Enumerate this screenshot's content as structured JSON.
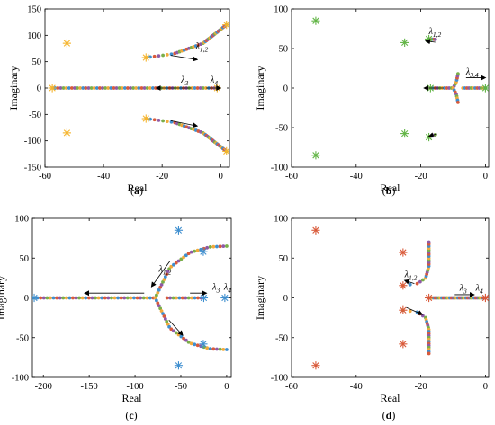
{
  "colors": {
    "arrow": "#000000",
    "axis": "#000000"
  },
  "chart_data": [
    {
      "id": "a",
      "type": "scatter",
      "label": "(a)",
      "xlabel": "Real",
      "ylabel": "Imaginary",
      "xlim": [
        -60,
        3
      ],
      "ylim": [
        -150,
        150
      ],
      "xticks": [
        -60,
        -40,
        -20,
        0
      ],
      "yticks": [
        -150,
        -100,
        -50,
        0,
        50,
        100,
        150
      ],
      "series": [
        {
          "marker": "star",
          "color": "#f5b52e",
          "points": [
            [
              -52.5,
              85
            ],
            [
              -52.5,
              -85
            ],
            [
              -25.5,
              58
            ],
            [
              -25.5,
              -58
            ],
            [
              -57.5,
              0
            ],
            [
              -1.2,
              0
            ],
            [
              2,
              120
            ],
            [
              2,
              -120
            ]
          ]
        },
        {
          "marker": "dot",
          "colors": [
            "#f2a93b",
            "#3f8fcf",
            "#d95a3a",
            "#8e5aa6",
            "#7aae4a"
          ],
          "paths": [
            {
              "x": [
                -57.5,
                -1.2
              ],
              "y": [
                0,
                0
              ],
              "n": 60
            },
            {
              "x": [
                -25.5,
                -16,
                -6,
                2
              ],
              "y": [
                58,
                65,
                85,
                120
              ],
              "n": 40
            },
            {
              "x": [
                -25.5,
                -16,
                -6,
                2
              ],
              "y": [
                -58,
                -65,
                -85,
                -120
              ],
              "n": 40
            }
          ]
        }
      ],
      "arrows": [
        [
          -17,
          62,
          -8,
          54
        ],
        [
          -17,
          -62,
          -8,
          -72
        ],
        [
          -10,
          0,
          -22,
          0
        ],
        [
          -5,
          0,
          0,
          0
        ]
      ],
      "annotations": [
        {
          "text": "λ1,2",
          "x": -8.5,
          "y": 74
        },
        {
          "text": "λ3",
          "x": -13.5,
          "y": 10
        },
        {
          "text": "λ4",
          "x": -3.5,
          "y": 10
        }
      ]
    },
    {
      "id": "b",
      "type": "scatter",
      "label": "(b)",
      "xlabel": "Real",
      "ylabel": "Imaginary",
      "xlim": [
        -60,
        1
      ],
      "ylim": [
        -100,
        100
      ],
      "xticks": [
        -60,
        -40,
        -20,
        0
      ],
      "yticks": [
        -100,
        -50,
        0,
        50,
        100
      ],
      "series": [
        {
          "marker": "star",
          "color": "#62b546",
          "points": [
            [
              -52.5,
              85
            ],
            [
              -52.5,
              -85
            ],
            [
              -25,
              57.5
            ],
            [
              -25,
              -57.5
            ],
            [
              -17.5,
              62
            ],
            [
              -17.5,
              -62
            ],
            [
              -17,
              0
            ],
            [
              0,
              0
            ]
          ]
        },
        {
          "marker": "dot",
          "colors": [
            "#f2a93b",
            "#3f8fcf",
            "#d95a3a",
            "#8e5aa6",
            "#7aae4a"
          ],
          "paths": [
            {
              "x": [
                -17,
                -10.5
              ],
              "y": [
                0,
                0
              ],
              "n": 10
            },
            {
              "x": [
                -7,
                0
              ],
              "y": [
                0,
                0
              ],
              "n": 12
            },
            {
              "x": [
                -10,
                -9,
                -8.5
              ],
              "y": [
                0,
                8,
                18
              ],
              "n": 8
            },
            {
              "x": [
                -10,
                -9,
                -8.5
              ],
              "y": [
                0,
                -8,
                -18
              ],
              "n": 8
            },
            {
              "x": [
                -17.5,
                -15.5
              ],
              "y": [
                62,
                61.5
              ],
              "n": 6
            },
            {
              "x": [
                -17.5,
                -15.5
              ],
              "y": [
                -62,
                -59
              ],
              "n": 6
            }
          ]
        }
      ],
      "arrows": [
        [
          -15.5,
          58,
          -18.5,
          59.5
        ],
        [
          -15,
          -58,
          -17.5,
          -61
        ],
        [
          -13,
          0,
          -19,
          0
        ],
        [
          -6,
          13,
          0,
          13
        ]
      ],
      "annotations": [
        {
          "text": "λ1,2",
          "x": -17.5,
          "y": 68
        },
        {
          "text": "λ3,4",
          "x": -6,
          "y": 17
        }
      ]
    },
    {
      "id": "c",
      "type": "scatter",
      "label": "(c)",
      "xlabel": "Real",
      "ylabel": "Imaginary",
      "xlim": [
        -212,
        5
      ],
      "ylim": [
        -100,
        100
      ],
      "xticks": [
        -200,
        -150,
        -100,
        -50,
        0
      ],
      "yticks": [
        -100,
        -50,
        0,
        50,
        100
      ],
      "series": [
        {
          "marker": "star",
          "color": "#3f8fcf",
          "points": [
            [
              -52.5,
              85
            ],
            [
              -52.5,
              -85
            ],
            [
              -25.5,
              58
            ],
            [
              -25.5,
              -58
            ],
            [
              -25,
              0
            ],
            [
              -2,
              0
            ],
            [
              -210,
              0
            ]
          ]
        },
        {
          "marker": "dot",
          "colors": [
            "#f2a93b",
            "#3f8fcf",
            "#d95a3a",
            "#8e5aa6",
            "#7aae4a"
          ],
          "paths": [
            {
              "x": [
                -210,
                -80
              ],
              "y": [
                0,
                0
              ],
              "n": 38
            },
            {
              "x": [
                -78,
                -62,
                -40,
                -18,
                0
              ],
              "y": [
                0,
                38,
                57,
                64,
                65
              ],
              "n": 32
            },
            {
              "x": [
                -78,
                -62,
                -40,
                -18,
                0
              ],
              "y": [
                0,
                -38,
                -57,
                -64,
                -65
              ],
              "n": 32
            },
            {
              "x": [
                -65,
                -28
              ],
              "y": [
                0,
                0
              ],
              "n": 12
            }
          ]
        }
      ],
      "arrows": [
        [
          -90,
          6,
          -155,
          6
        ],
        [
          -62,
          46,
          -82,
          14
        ],
        [
          -63,
          -28,
          -48,
          -47
        ],
        [
          -40,
          6,
          -22,
          6
        ]
      ],
      "annotations": [
        {
          "text": "λ1,2",
          "x": -74,
          "y": 33
        },
        {
          "text": "λ3",
          "x": -15.5,
          "y": 10
        },
        {
          "text": "λ4",
          "x": -3,
          "y": 10
        }
      ]
    },
    {
      "id": "d",
      "type": "scatter",
      "label": "(d)",
      "xlabel": "Real",
      "ylabel": "Imaginary",
      "xlim": [
        -60,
        1
      ],
      "ylim": [
        -100,
        100
      ],
      "xticks": [
        -60,
        -40,
        -20,
        0
      ],
      "yticks": [
        -100,
        -50,
        0,
        50,
        100
      ],
      "series": [
        {
          "marker": "star",
          "color": "#d95a3a",
          "points": [
            [
              -52.5,
              85
            ],
            [
              -52.5,
              -85
            ],
            [
              -25.5,
              57
            ],
            [
              -25.5,
              -58
            ],
            [
              -25.5,
              15.5
            ],
            [
              -25.5,
              -15.5
            ],
            [
              -17.5,
              0
            ],
            [
              0,
              0
            ]
          ]
        },
        {
          "marker": "dot",
          "colors": [
            "#f2a93b",
            "#3f8fcf",
            "#d95a3a",
            "#8e5aa6",
            "#7aae4a"
          ],
          "paths": [
            {
              "x": [
                -25.5,
                -21,
                -18.5,
                -17.5,
                -17.5
              ],
              "y": [
                15.5,
                18,
                25,
                40,
                70
              ],
              "n": 24
            },
            {
              "x": [
                -25.5,
                -21,
                -18.5,
                -17.5,
                -17.5
              ],
              "y": [
                -15.5,
                -18,
                -25,
                -40,
                -70
              ],
              "n": 24
            },
            {
              "x": [
                -17.5,
                0
              ],
              "y": [
                0,
                0
              ],
              "n": 36
            }
          ]
        }
      ],
      "arrows": [
        [
          -22,
          18,
          -25,
          22
        ],
        [
          -24.5,
          -12,
          -19.5,
          -21
        ],
        [
          -9.5,
          4,
          -3.5,
          4
        ]
      ],
      "annotations": [
        {
          "text": "λ1,2",
          "x": -25,
          "y": 26
        },
        {
          "text": "λ3",
          "x": -8,
          "y": 9
        },
        {
          "text": "λ4",
          "x": -3,
          "y": 9
        }
      ]
    }
  ]
}
